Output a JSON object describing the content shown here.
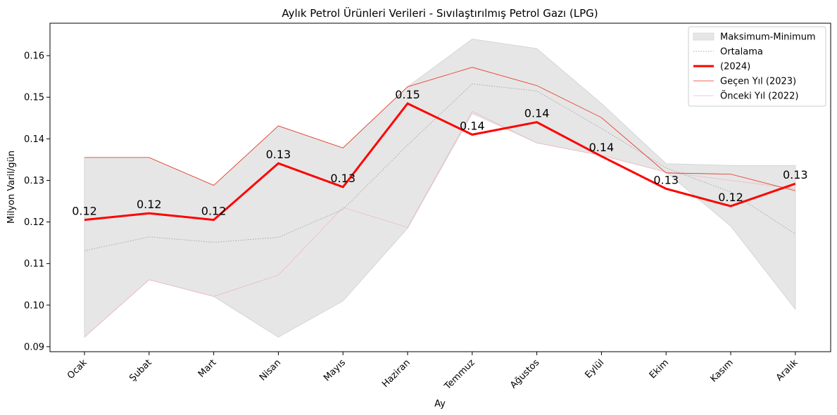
{
  "chart_data": {
    "type": "line",
    "title": "Aylık Petrol Ürünleri Verileri - Sıvılaştırılmış Petrol Gazı (LPG)",
    "xlabel": "Ay",
    "ylabel": "Milyon Varil/gün",
    "ylim": [
      0.0888,
      0.1678
    ],
    "yticks": [
      "0.09",
      "0.10",
      "0.11",
      "0.12",
      "0.13",
      "0.14",
      "0.15",
      "0.16"
    ],
    "categories": [
      "Ocak",
      "Şubat",
      "Mart",
      "Nisan",
      "Mayıs",
      "Haziran",
      "Temmuz",
      "Ağustos",
      "Eylül",
      "Ekim",
      "Kasım",
      "Aralık"
    ],
    "band": {
      "name": "Maksimum-Minimum",
      "max": [
        0.1355,
        0.1355,
        0.1288,
        0.1431,
        0.1378,
        0.1525,
        0.164,
        0.1617,
        0.1485,
        0.134,
        0.1336,
        0.1336
      ],
      "min": [
        0.0923,
        0.1061,
        0.1021,
        0.0923,
        0.101,
        0.1185,
        0.1461,
        0.139,
        0.136,
        0.132,
        0.119,
        0.099
      ]
    },
    "series": [
      {
        "name": "Ortalama",
        "values": [
          0.1131,
          0.1164,
          0.1151,
          0.1163,
          0.123,
          0.1385,
          0.1532,
          0.1515,
          0.1425,
          0.133,
          0.1272,
          0.1171
        ]
      },
      {
        "name": " (2024)",
        "values": [
          0.1205,
          0.1221,
          0.1205,
          0.1341,
          0.1284,
          0.1485,
          0.141,
          0.144,
          0.1358,
          0.128,
          0.1238,
          0.1292
        ]
      },
      {
        "name": "Geçen Yıl (2023)",
        "values": [
          0.1355,
          0.1355,
          0.1288,
          0.1431,
          0.1378,
          0.1525,
          0.1572,
          0.1528,
          0.1451,
          0.1318,
          0.1315,
          0.1275
        ]
      },
      {
        "name": "Önceki Yıl (2022)",
        "values": [
          0.0923,
          0.1061,
          0.1021,
          0.1072,
          0.1235,
          0.1187,
          0.1466,
          0.139,
          0.136,
          0.132,
          0.13,
          0.128
        ]
      }
    ],
    "data_labels": [
      "0.12",
      "0.12",
      "0.12",
      "0.13",
      "0.13",
      "0.15",
      "0.14",
      "0.14",
      "0.14",
      "0.13",
      "0.12",
      "0.13"
    ],
    "colors": {
      "band": "#e6e6e6",
      "band_edge": "#d6d6d6",
      "average": "#a8a8a8",
      "current": "#ff0000",
      "last_year": "#e8321c",
      "prev_year": "#f2b8bf"
    },
    "legend_placement": "top-right",
    "grid": false
  }
}
